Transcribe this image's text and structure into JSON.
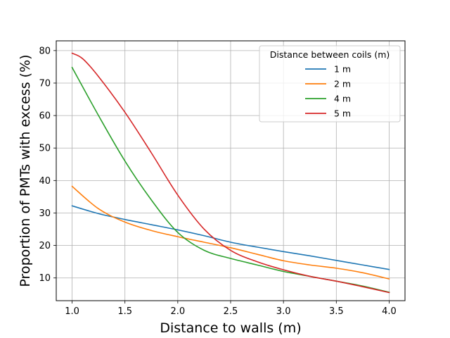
{
  "chart_data": {
    "type": "line",
    "title": "",
    "xlabel": "Distance to walls (m)",
    "ylabel": "Proportion of PMTs with excess (%)",
    "xlim": [
      0.85,
      4.15
    ],
    "ylim": [
      3,
      83
    ],
    "xticks": [
      1.0,
      1.5,
      2.0,
      2.5,
      3.0,
      3.5,
      4.0
    ],
    "xtick_labels": [
      "1.0",
      "1.5",
      "2.0",
      "2.5",
      "3.0",
      "3.5",
      "4.0"
    ],
    "yticks": [
      10,
      20,
      30,
      40,
      50,
      60,
      70,
      80
    ],
    "ytick_labels": [
      "10",
      "20",
      "30",
      "40",
      "50",
      "60",
      "70",
      "80"
    ],
    "grid": true,
    "legend": {
      "title": "Distance between coils (m)",
      "position": "top-right"
    },
    "series": [
      {
        "name": "1 m",
        "color": "#1f77b4",
        "x": [
          1.0,
          1.25,
          1.5,
          1.75,
          2.0,
          2.25,
          2.5,
          2.75,
          3.0,
          3.25,
          3.5,
          3.75,
          4.0
        ],
        "y": [
          32.2,
          29.8,
          28.0,
          26.4,
          24.8,
          23.0,
          21.0,
          19.5,
          18.1,
          16.8,
          15.4,
          14.0,
          12.6
        ]
      },
      {
        "name": "2 m",
        "color": "#ff7f0e",
        "x": [
          1.0,
          1.25,
          1.5,
          1.75,
          2.0,
          2.25,
          2.5,
          2.75,
          3.0,
          3.25,
          3.5,
          3.75,
          4.0
        ],
        "y": [
          38.2,
          31.3,
          27.2,
          24.6,
          22.7,
          21.0,
          19.3,
          17.3,
          15.3,
          14.0,
          13.0,
          11.6,
          9.7
        ]
      },
      {
        "name": "4 m",
        "color": "#2ca02c",
        "x": [
          1.0,
          1.25,
          1.5,
          1.75,
          2.0,
          2.25,
          2.5,
          2.75,
          3.0,
          3.25,
          3.5,
          3.75,
          4.0
        ],
        "y": [
          74.8,
          60.0,
          46.0,
          34.0,
          24.0,
          18.5,
          16.0,
          14.0,
          12.0,
          10.5,
          9.0,
          7.5,
          5.6
        ]
      },
      {
        "name": "5 m",
        "color": "#d62728",
        "x": [
          1.0,
          1.1,
          1.25,
          1.5,
          1.75,
          2.0,
          2.25,
          2.5,
          2.75,
          3.0,
          3.25,
          3.5,
          3.75,
          4.0
        ],
        "y": [
          79.2,
          77.5,
          72.0,
          61.0,
          48.5,
          35.5,
          25.0,
          18.5,
          15.0,
          12.5,
          10.5,
          9.0,
          7.3,
          5.5
        ]
      }
    ]
  }
}
